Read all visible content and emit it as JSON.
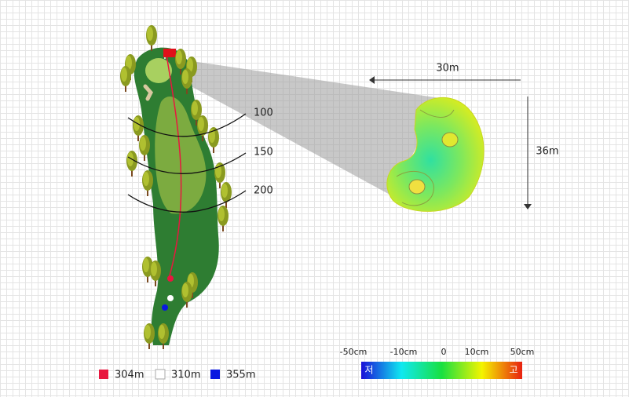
{
  "distance_markers": [
    "100",
    "150",
    "200"
  ],
  "zoom": {
    "width_label": "30m",
    "height_label": "36m"
  },
  "tee_legend": [
    {
      "label": "304m",
      "color": "#e8173f"
    },
    {
      "label": "310m",
      "color": "#ffffff"
    },
    {
      "label": "355m",
      "color": "#0a18e0"
    }
  ],
  "color_scale": {
    "ticks": [
      "-50cm",
      "-10cm",
      "0",
      "10cm",
      "50cm"
    ],
    "low": "저",
    "high": "고"
  }
}
